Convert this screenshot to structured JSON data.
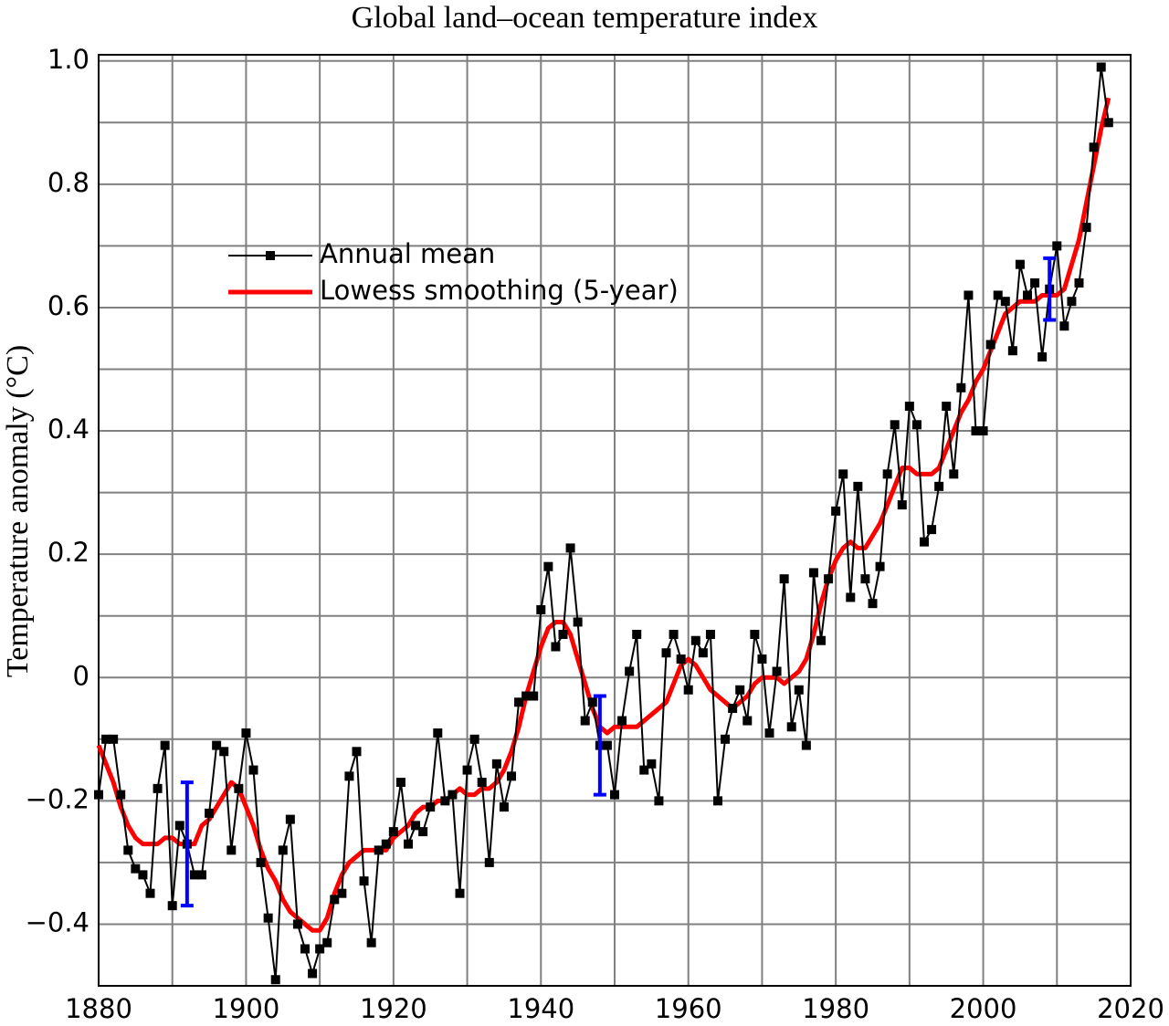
{
  "chart_data": {
    "type": "line",
    "title": "Global land–ocean temperature index",
    "y_label": "Temperature anomaly (°C)",
    "x": [
      1880,
      1881,
      1882,
      1883,
      1884,
      1885,
      1886,
      1887,
      1888,
      1889,
      1890,
      1891,
      1892,
      1893,
      1894,
      1895,
      1896,
      1897,
      1898,
      1899,
      1900,
      1901,
      1902,
      1903,
      1904,
      1905,
      1906,
      1907,
      1908,
      1909,
      1910,
      1911,
      1912,
      1913,
      1914,
      1915,
      1916,
      1917,
      1918,
      1919,
      1920,
      1921,
      1922,
      1923,
      1924,
      1925,
      1926,
      1927,
      1928,
      1929,
      1930,
      1931,
      1932,
      1933,
      1934,
      1935,
      1936,
      1937,
      1938,
      1939,
      1940,
      1941,
      1942,
      1943,
      1944,
      1945,
      1946,
      1947,
      1948,
      1949,
      1950,
      1951,
      1952,
      1953,
      1954,
      1955,
      1956,
      1957,
      1958,
      1959,
      1960,
      1961,
      1962,
      1963,
      1964,
      1965,
      1966,
      1967,
      1968,
      1969,
      1970,
      1971,
      1972,
      1973,
      1974,
      1975,
      1976,
      1977,
      1978,
      1979,
      1980,
      1981,
      1982,
      1983,
      1984,
      1985,
      1986,
      1987,
      1988,
      1989,
      1990,
      1991,
      1992,
      1993,
      1994,
      1995,
      1996,
      1997,
      1998,
      1999,
      2000,
      2001,
      2002,
      2003,
      2004,
      2005,
      2006,
      2007,
      2008,
      2009,
      2010,
      2011,
      2012,
      2013,
      2014,
      2015,
      2016,
      2017
    ],
    "series": [
      {
        "name": "Annual mean",
        "color": "#000000",
        "marker": "square",
        "values": [
          -0.19,
          -0.1,
          -0.1,
          -0.19,
          -0.28,
          -0.31,
          -0.32,
          -0.35,
          -0.18,
          -0.11,
          -0.37,
          -0.24,
          -0.27,
          -0.32,
          -0.32,
          -0.22,
          -0.11,
          -0.12,
          -0.28,
          -0.18,
          -0.09,
          -0.15,
          -0.3,
          -0.39,
          -0.49,
          -0.28,
          -0.23,
          -0.4,
          -0.44,
          -0.48,
          -0.44,
          -0.43,
          -0.36,
          -0.35,
          -0.16,
          -0.12,
          -0.33,
          -0.43,
          -0.28,
          -0.27,
          -0.25,
          -0.17,
          -0.27,
          -0.24,
          -0.25,
          -0.21,
          -0.09,
          -0.2,
          -0.19,
          -0.35,
          -0.15,
          -0.1,
          -0.17,
          -0.3,
          -0.14,
          -0.21,
          -0.16,
          -0.04,
          -0.03,
          -0.03,
          0.11,
          0.18,
          0.05,
          0.07,
          0.21,
          0.09,
          -0.07,
          -0.04,
          -0.11,
          -0.11,
          -0.19,
          -0.07,
          0.01,
          0.07,
          -0.15,
          -0.14,
          -0.2,
          0.04,
          0.07,
          0.03,
          -0.02,
          0.06,
          0.04,
          0.07,
          -0.2,
          -0.1,
          -0.05,
          -0.02,
          -0.07,
          0.07,
          0.03,
          -0.09,
          0.01,
          0.16,
          -0.08,
          -0.02,
          -0.11,
          0.17,
          0.06,
          0.16,
          0.27,
          0.33,
          0.13,
          0.31,
          0.16,
          0.12,
          0.18,
          0.33,
          0.41,
          0.28,
          0.44,
          0.41,
          0.22,
          0.24,
          0.31,
          0.44,
          0.33,
          0.47,
          0.62,
          0.4,
          0.4,
          0.54,
          0.62,
          0.61,
          0.53,
          0.67,
          0.62,
          0.64,
          0.52,
          0.63,
          0.7,
          0.57,
          0.61,
          0.64,
          0.73,
          0.86,
          0.99,
          0.9
        ]
      },
      {
        "name": "Lowess smoothing (5-year)",
        "color": "#ff0000",
        "values": [
          -0.11,
          -0.14,
          -0.17,
          -0.21,
          -0.24,
          -0.26,
          -0.27,
          -0.27,
          -0.27,
          -0.26,
          -0.26,
          -0.27,
          -0.27,
          -0.27,
          -0.24,
          -0.23,
          -0.21,
          -0.19,
          -0.17,
          -0.18,
          -0.21,
          -0.24,
          -0.28,
          -0.31,
          -0.33,
          -0.36,
          -0.38,
          -0.39,
          -0.4,
          -0.41,
          -0.41,
          -0.39,
          -0.35,
          -0.32,
          -0.3,
          -0.29,
          -0.28,
          -0.28,
          -0.28,
          -0.28,
          -0.26,
          -0.25,
          -0.24,
          -0.22,
          -0.21,
          -0.21,
          -0.2,
          -0.2,
          -0.19,
          -0.18,
          -0.19,
          -0.19,
          -0.18,
          -0.18,
          -0.17,
          -0.15,
          -0.12,
          -0.08,
          -0.03,
          0.01,
          0.05,
          0.08,
          0.09,
          0.09,
          0.07,
          0.03,
          -0.01,
          -0.05,
          -0.08,
          -0.09,
          -0.08,
          -0.08,
          -0.08,
          -0.08,
          -0.07,
          -0.06,
          -0.05,
          -0.04,
          -0.01,
          0.02,
          0.03,
          0.02,
          0,
          -0.02,
          -0.03,
          -0.04,
          -0.05,
          -0.04,
          -0.03,
          -0.01,
          0,
          0,
          0,
          -0.01,
          0,
          0.01,
          0.03,
          0.07,
          0.12,
          0.16,
          0.19,
          0.21,
          0.22,
          0.21,
          0.21,
          0.23,
          0.25,
          0.28,
          0.31,
          0.34,
          0.34,
          0.33,
          0.33,
          0.33,
          0.34,
          0.37,
          0.4,
          0.43,
          0.45,
          0.48,
          0.5,
          0.53,
          0.56,
          0.59,
          0.6,
          0.61,
          0.61,
          0.61,
          0.62,
          0.62,
          0.62,
          0.63,
          0.67,
          0.71,
          0.77,
          0.83,
          0.89,
          0.94
        ]
      }
    ],
    "error_bars": {
      "color": "#0000ff",
      "x": [
        1892,
        1948,
        2009
      ],
      "values": [
        -0.27,
        -0.11,
        0.63
      ],
      "errors": [
        0.1,
        0.08,
        0.05
      ]
    },
    "xlim": [
      1880,
      2020
    ],
    "xticks": [
      1880,
      1900,
      1920,
      1940,
      1960,
      1980,
      2000,
      2020
    ],
    "xgrid_minor": [
      1890,
      1910,
      1930,
      1950,
      1970,
      1990,
      2010
    ],
    "ylim": [
      -0.5,
      1.01
    ],
    "yticks": [
      {
        "value": 1,
        "label": "1.0"
      },
      0.8,
      0.6,
      0.4,
      0.2,
      0,
      {
        "value": -0.2,
        "label": "−0.2"
      },
      {
        "value": -0.4,
        "label": "−0.4"
      }
    ],
    "ygrid_minor": [
      0.9,
      0.7,
      0.5,
      0.3,
      0.1,
      -0.1,
      -0.3
    ],
    "grid": true,
    "legend": "upper left"
  }
}
